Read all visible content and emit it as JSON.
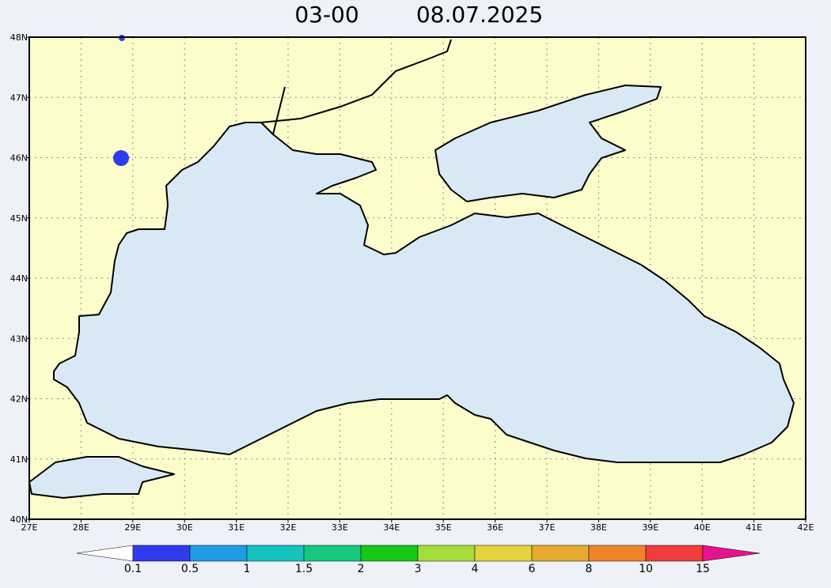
{
  "title": "03-00",
  "date": "08.07.2025",
  "map": {
    "xticks": [
      {
        "value": 27,
        "label": "27E"
      },
      {
        "value": 28,
        "label": "28E"
      },
      {
        "value": 29,
        "label": "29E"
      },
      {
        "value": 30,
        "label": "30E"
      },
      {
        "value": 31,
        "label": "31E"
      },
      {
        "value": 32,
        "label": "32E"
      },
      {
        "value": 33,
        "label": "33E"
      },
      {
        "value": 34,
        "label": "34E"
      },
      {
        "value": 35,
        "label": "35E"
      },
      {
        "value": 36,
        "label": "36E"
      },
      {
        "value": 37,
        "label": "37E"
      },
      {
        "value": 38,
        "label": "38E"
      },
      {
        "value": 39,
        "label": "39E"
      },
      {
        "value": 40,
        "label": "40E"
      },
      {
        "value": 41,
        "label": "41E"
      },
      {
        "value": 42,
        "label": "42E"
      }
    ],
    "yticks": [
      {
        "value": 40,
        "label": "40N"
      },
      {
        "value": 41,
        "label": "41N"
      },
      {
        "value": 42,
        "label": "42N"
      },
      {
        "value": 43,
        "label": "43N"
      },
      {
        "value": 44,
        "label": "44N"
      },
      {
        "value": 45,
        "label": "45N"
      },
      {
        "value": 46,
        "label": "46N"
      },
      {
        "value": 47,
        "label": "47N"
      },
      {
        "value": 48,
        "label": "48N"
      }
    ]
  },
  "colorbar": {
    "levels": [
      0.1,
      0.5,
      1,
      1.5,
      2,
      3,
      4,
      6,
      8,
      10,
      15
    ],
    "colors": [
      "#2e3cf0",
      "#1e9be6",
      "#14c3be",
      "#14c87d",
      "#14c814",
      "#a5dc3c",
      "#e6d23c",
      "#e6aa32",
      "#f08228",
      "#f03c3c"
    ],
    "under_color": "#ffffff",
    "over_color": "#e6148c"
  }
}
